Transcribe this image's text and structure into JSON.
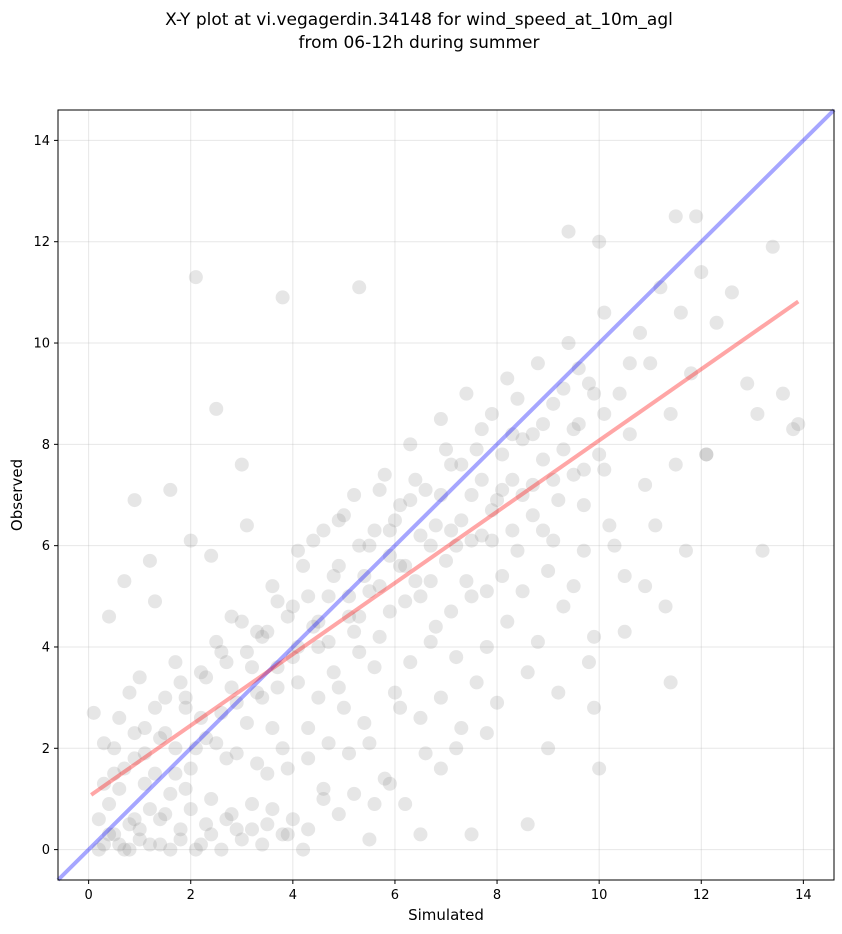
{
  "chart_data": {
    "type": "scatter",
    "title_line1": "X-Y plot at vi.vegagerdin.34148 for wind_speed_at_10m_agl",
    "title_line2": "from 06-12h during summer",
    "xlabel": "Simulated",
    "ylabel": "Observed",
    "xlim": [
      -0.6,
      14.6
    ],
    "ylim": [
      -0.6,
      14.6
    ],
    "xticks": [
      0,
      2,
      4,
      6,
      8,
      10,
      12,
      14
    ],
    "yticks": [
      0,
      2,
      4,
      6,
      8,
      10,
      12,
      14
    ],
    "grid": true,
    "point_color": "#808080",
    "identity_line": {
      "color": "#0000ff",
      "from": [
        -0.6,
        -0.6
      ],
      "to": [
        14.6,
        14.6
      ]
    },
    "fit_line": {
      "color": "#ff0000",
      "from": [
        0.05,
        1.08
      ],
      "to": [
        13.9,
        10.82
      ]
    },
    "points": [
      [
        0.2,
        0.6
      ],
      [
        0.3,
        0.1
      ],
      [
        0.4,
        0.9
      ],
      [
        0.5,
        0.3
      ],
      [
        0.6,
        1.2
      ],
      [
        0.7,
        0.0
      ],
      [
        0.8,
        0.5
      ],
      [
        0.9,
        1.8
      ],
      [
        1.0,
        0.2
      ],
      [
        1.1,
        2.4
      ],
      [
        1.2,
        0.8
      ],
      [
        1.3,
        1.5
      ],
      [
        1.4,
        0.1
      ],
      [
        1.5,
        3.0
      ],
      [
        1.6,
        1.1
      ],
      [
        1.7,
        2.0
      ],
      [
        1.8,
        0.4
      ],
      [
        1.9,
        2.8
      ],
      [
        2.0,
        1.6
      ],
      [
        2.1,
        0.0
      ],
      [
        2.2,
        3.5
      ],
      [
        2.3,
        2.2
      ],
      [
        2.4,
        1.0
      ],
      [
        2.5,
        4.1
      ],
      [
        2.6,
        2.7
      ],
      [
        2.7,
        0.6
      ],
      [
        2.8,
        3.2
      ],
      [
        2.9,
        1.9
      ],
      [
        3.0,
        4.5
      ],
      [
        3.1,
        2.5
      ],
      [
        3.2,
        0.9
      ],
      [
        3.3,
        4.3
      ],
      [
        3.4,
        3.0
      ],
      [
        3.5,
        1.5
      ],
      [
        3.6,
        5.2
      ],
      [
        3.7,
        3.6
      ],
      [
        3.8,
        2.0
      ],
      [
        3.9,
        0.3
      ],
      [
        4.0,
        4.8
      ],
      [
        4.1,
        3.3
      ],
      [
        4.2,
        5.6
      ],
      [
        4.3,
        2.4
      ],
      [
        4.4,
        6.1
      ],
      [
        4.5,
        4.0
      ],
      [
        4.6,
        1.2
      ],
      [
        4.7,
        5.0
      ],
      [
        4.8,
        3.5
      ],
      [
        4.9,
        6.5
      ],
      [
        5.0,
        2.8
      ],
      [
        5.1,
        4.6
      ],
      [
        5.2,
        7.0
      ],
      [
        5.3,
        3.9
      ],
      [
        5.4,
        5.4
      ],
      [
        5.5,
        2.1
      ],
      [
        5.6,
        6.3
      ],
      [
        5.7,
        4.2
      ],
      [
        5.8,
        7.4
      ],
      [
        5.9,
        5.8
      ],
      [
        6.0,
        3.1
      ],
      [
        6.1,
        6.8
      ],
      [
        6.2,
        4.9
      ],
      [
        6.3,
        8.0
      ],
      [
        6.4,
        5.3
      ],
      [
        6.5,
        2.6
      ],
      [
        6.6,
        7.1
      ],
      [
        6.7,
        6.0
      ],
      [
        6.8,
        4.4
      ],
      [
        6.9,
        8.5
      ],
      [
        7.0,
        5.7
      ],
      [
        7.1,
        7.6
      ],
      [
        7.2,
        3.8
      ],
      [
        7.3,
        6.5
      ],
      [
        7.4,
        9.0
      ],
      [
        7.5,
        5.0
      ],
      [
        7.6,
        7.9
      ],
      [
        7.7,
        6.2
      ],
      [
        7.8,
        4.0
      ],
      [
        7.9,
        8.6
      ],
      [
        8.0,
        6.9
      ],
      [
        8.1,
        5.4
      ],
      [
        8.2,
        9.3
      ],
      [
        8.3,
        7.3
      ],
      [
        8.4,
        5.9
      ],
      [
        8.5,
        8.1
      ],
      [
        8.6,
        3.5
      ],
      [
        8.7,
        6.6
      ],
      [
        8.8,
        9.6
      ],
      [
        8.9,
        7.7
      ],
      [
        9.0,
        5.5
      ],
      [
        9.1,
        8.8
      ],
      [
        9.2,
        6.9
      ],
      [
        9.3,
        4.8
      ],
      [
        9.4,
        10.0
      ],
      [
        9.5,
        7.4
      ],
      [
        9.6,
        8.4
      ],
      [
        9.7,
        5.9
      ],
      [
        9.8,
        9.2
      ],
      [
        9.9,
        4.2
      ],
      [
        10.0,
        7.8
      ],
      [
        10.1,
        10.6
      ],
      [
        10.2,
        6.4
      ],
      [
        10.4,
        9.0
      ],
      [
        10.5,
        5.4
      ],
      [
        10.6,
        8.2
      ],
      [
        10.8,
        10.2
      ],
      [
        10.9,
        7.2
      ],
      [
        11.0,
        9.6
      ],
      [
        11.1,
        6.4
      ],
      [
        11.2,
        11.1
      ],
      [
        11.4,
        8.6
      ],
      [
        11.5,
        7.6
      ],
      [
        11.6,
        10.6
      ],
      [
        11.7,
        5.9
      ],
      [
        11.8,
        9.4
      ],
      [
        12.0,
        11.4
      ],
      [
        12.1,
        7.8
      ],
      [
        12.3,
        10.4
      ],
      [
        12.6,
        11.0
      ],
      [
        12.9,
        9.2
      ],
      [
        13.1,
        8.6
      ],
      [
        13.4,
        11.9
      ],
      [
        13.6,
        9.0
      ],
      [
        13.8,
        8.3
      ],
      [
        13.9,
        8.4
      ],
      [
        0.9,
        6.9
      ],
      [
        2.1,
        11.3
      ],
      [
        3.8,
        10.9
      ],
      [
        1.2,
        5.7
      ],
      [
        1.6,
        7.1
      ],
      [
        2.5,
        8.7
      ],
      [
        3.0,
        7.6
      ],
      [
        5.3,
        11.1
      ],
      [
        9.4,
        12.2
      ],
      [
        10.0,
        12.0
      ],
      [
        11.5,
        12.5
      ],
      [
        11.9,
        12.5
      ],
      [
        11.4,
        3.3
      ],
      [
        10.0,
        1.6
      ],
      [
        8.6,
        0.5
      ],
      [
        7.5,
        0.3
      ],
      [
        6.5,
        0.3
      ],
      [
        5.5,
        0.2
      ],
      [
        4.2,
        0.0
      ],
      [
        3.5,
        0.5
      ],
      [
        12.1,
        7.8
      ],
      [
        13.2,
        5.9
      ],
      [
        11.3,
        4.8
      ],
      [
        10.5,
        4.3
      ],
      [
        9.9,
        2.8
      ],
      [
        9.0,
        2.0
      ],
      [
        0.4,
        4.6
      ],
      [
        0.7,
        5.3
      ],
      [
        1.3,
        4.9
      ],
      [
        2.0,
        6.1
      ],
      [
        2.4,
        5.8
      ],
      [
        3.1,
        6.4
      ],
      [
        0.8,
        3.1
      ],
      [
        1.7,
        3.7
      ],
      [
        0.1,
        2.7
      ],
      [
        0.3,
        2.1
      ],
      [
        0.5,
        1.5
      ],
      [
        0.6,
        2.6
      ],
      [
        0.9,
        0.6
      ],
      [
        1.0,
        3.4
      ],
      [
        1.1,
        1.3
      ],
      [
        1.4,
        2.2
      ],
      [
        1.5,
        0.7
      ],
      [
        1.8,
        3.3
      ],
      [
        1.9,
        1.2
      ],
      [
        2.2,
        2.6
      ],
      [
        2.3,
        0.5
      ],
      [
        2.6,
        3.9
      ],
      [
        2.7,
        1.8
      ],
      [
        2.8,
        4.6
      ],
      [
        2.9,
        0.4
      ],
      [
        3.2,
        3.6
      ],
      [
        3.3,
        1.7
      ],
      [
        3.4,
        4.2
      ],
      [
        3.6,
        2.4
      ],
      [
        3.7,
        4.9
      ],
      [
        3.9,
        1.6
      ],
      [
        4.0,
        3.8
      ],
      [
        4.1,
        5.9
      ],
      [
        4.3,
        1.8
      ],
      [
        4.4,
        4.4
      ],
      [
        4.5,
        3.0
      ],
      [
        4.6,
        6.3
      ],
      [
        4.7,
        2.1
      ],
      [
        4.8,
        5.4
      ],
      [
        4.9,
        3.2
      ],
      [
        5.0,
        6.6
      ],
      [
        5.1,
        1.9
      ],
      [
        5.2,
        4.3
      ],
      [
        5.3,
        6.0
      ],
      [
        5.4,
        2.5
      ],
      [
        5.5,
        5.1
      ],
      [
        5.6,
        3.6
      ],
      [
        5.7,
        7.1
      ],
      [
        5.8,
        1.4
      ],
      [
        5.9,
        4.7
      ],
      [
        6.0,
        6.5
      ],
      [
        6.1,
        2.8
      ],
      [
        6.2,
        5.6
      ],
      [
        6.3,
        3.7
      ],
      [
        6.4,
        7.3
      ],
      [
        6.5,
        5.0
      ],
      [
        6.6,
        1.9
      ],
      [
        6.7,
        4.1
      ],
      [
        6.8,
        6.4
      ],
      [
        6.9,
        3.0
      ],
      [
        7.0,
        7.9
      ],
      [
        7.1,
        4.7
      ],
      [
        7.2,
        6.0
      ],
      [
        7.3,
        2.4
      ],
      [
        7.4,
        5.3
      ],
      [
        7.5,
        7.0
      ],
      [
        7.6,
        3.3
      ],
      [
        7.7,
        8.3
      ],
      [
        7.8,
        5.1
      ],
      [
        7.9,
        6.7
      ],
      [
        8.0,
        2.9
      ],
      [
        8.1,
        7.8
      ],
      [
        8.2,
        4.5
      ],
      [
        8.3,
        6.3
      ],
      [
        8.4,
        8.9
      ],
      [
        8.5,
        5.1
      ],
      [
        8.7,
        7.2
      ],
      [
        8.8,
        4.1
      ],
      [
        8.9,
        8.4
      ],
      [
        9.1,
        6.1
      ],
      [
        9.2,
        3.1
      ],
      [
        9.3,
        7.9
      ],
      [
        9.5,
        5.2
      ],
      [
        9.6,
        9.5
      ],
      [
        9.7,
        6.8
      ],
      [
        9.8,
        3.7
      ],
      [
        10.1,
        8.6
      ],
      [
        10.3,
        6.0
      ],
      [
        10.6,
        9.6
      ],
      [
        10.9,
        5.2
      ],
      [
        0.2,
        0.0
      ],
      [
        0.4,
        0.3
      ],
      [
        0.6,
        0.1
      ],
      [
        0.8,
        0.0
      ],
      [
        1.0,
        0.4
      ],
      [
        1.2,
        0.1
      ],
      [
        1.4,
        0.6
      ],
      [
        1.6,
        0.0
      ],
      [
        1.8,
        0.2
      ],
      [
        2.0,
        0.8
      ],
      [
        2.2,
        0.1
      ],
      [
        2.4,
        0.3
      ],
      [
        2.6,
        0.0
      ],
      [
        2.8,
        0.7
      ],
      [
        3.0,
        0.2
      ],
      [
        3.2,
        0.4
      ],
      [
        3.4,
        0.1
      ],
      [
        3.6,
        0.8
      ],
      [
        3.8,
        0.3
      ],
      [
        4.0,
        0.6
      ],
      [
        4.3,
        0.4
      ],
      [
        4.6,
        1.0
      ],
      [
        4.9,
        0.7
      ],
      [
        5.2,
        1.1
      ],
      [
        5.6,
        0.9
      ],
      [
        5.9,
        1.3
      ],
      [
        6.2,
        0.9
      ],
      [
        6.9,
        1.6
      ],
      [
        7.2,
        2.0
      ],
      [
        7.8,
        2.3
      ],
      [
        0.3,
        1.3
      ],
      [
        0.5,
        2.0
      ],
      [
        0.7,
        1.6
      ],
      [
        0.9,
        2.3
      ],
      [
        1.1,
        1.9
      ],
      [
        1.3,
        2.8
      ],
      [
        1.5,
        2.3
      ],
      [
        1.7,
        1.5
      ],
      [
        1.9,
        3.0
      ],
      [
        2.1,
        2.0
      ],
      [
        2.3,
        3.4
      ],
      [
        2.5,
        2.1
      ],
      [
        2.7,
        3.7
      ],
      [
        2.9,
        2.9
      ],
      [
        3.1,
        3.9
      ],
      [
        3.3,
        3.1
      ],
      [
        3.5,
        4.3
      ],
      [
        3.7,
        3.2
      ],
      [
        3.9,
        4.6
      ],
      [
        4.1,
        4.0
      ],
      [
        4.3,
        5.0
      ],
      [
        4.5,
        4.5
      ],
      [
        4.7,
        4.1
      ],
      [
        4.9,
        5.6
      ],
      [
        5.1,
        5.0
      ],
      [
        5.3,
        4.6
      ],
      [
        5.5,
        6.0
      ],
      [
        5.7,
        5.2
      ],
      [
        5.9,
        6.3
      ],
      [
        6.1,
        5.6
      ],
      [
        6.3,
        6.9
      ],
      [
        6.5,
        6.2
      ],
      [
        6.7,
        5.3
      ],
      [
        6.9,
        7.0
      ],
      [
        7.1,
        6.3
      ],
      [
        7.3,
        7.6
      ],
      [
        7.5,
        6.1
      ],
      [
        7.7,
        7.3
      ],
      [
        7.9,
        6.1
      ],
      [
        8.1,
        7.1
      ],
      [
        8.3,
        8.2
      ],
      [
        8.5,
        7.0
      ],
      [
        8.7,
        8.2
      ],
      [
        8.9,
        6.3
      ],
      [
        9.1,
        7.3
      ],
      [
        9.3,
        9.1
      ],
      [
        9.5,
        8.3
      ],
      [
        9.7,
        7.5
      ],
      [
        9.9,
        9.0
      ],
      [
        10.1,
        7.5
      ]
    ]
  }
}
